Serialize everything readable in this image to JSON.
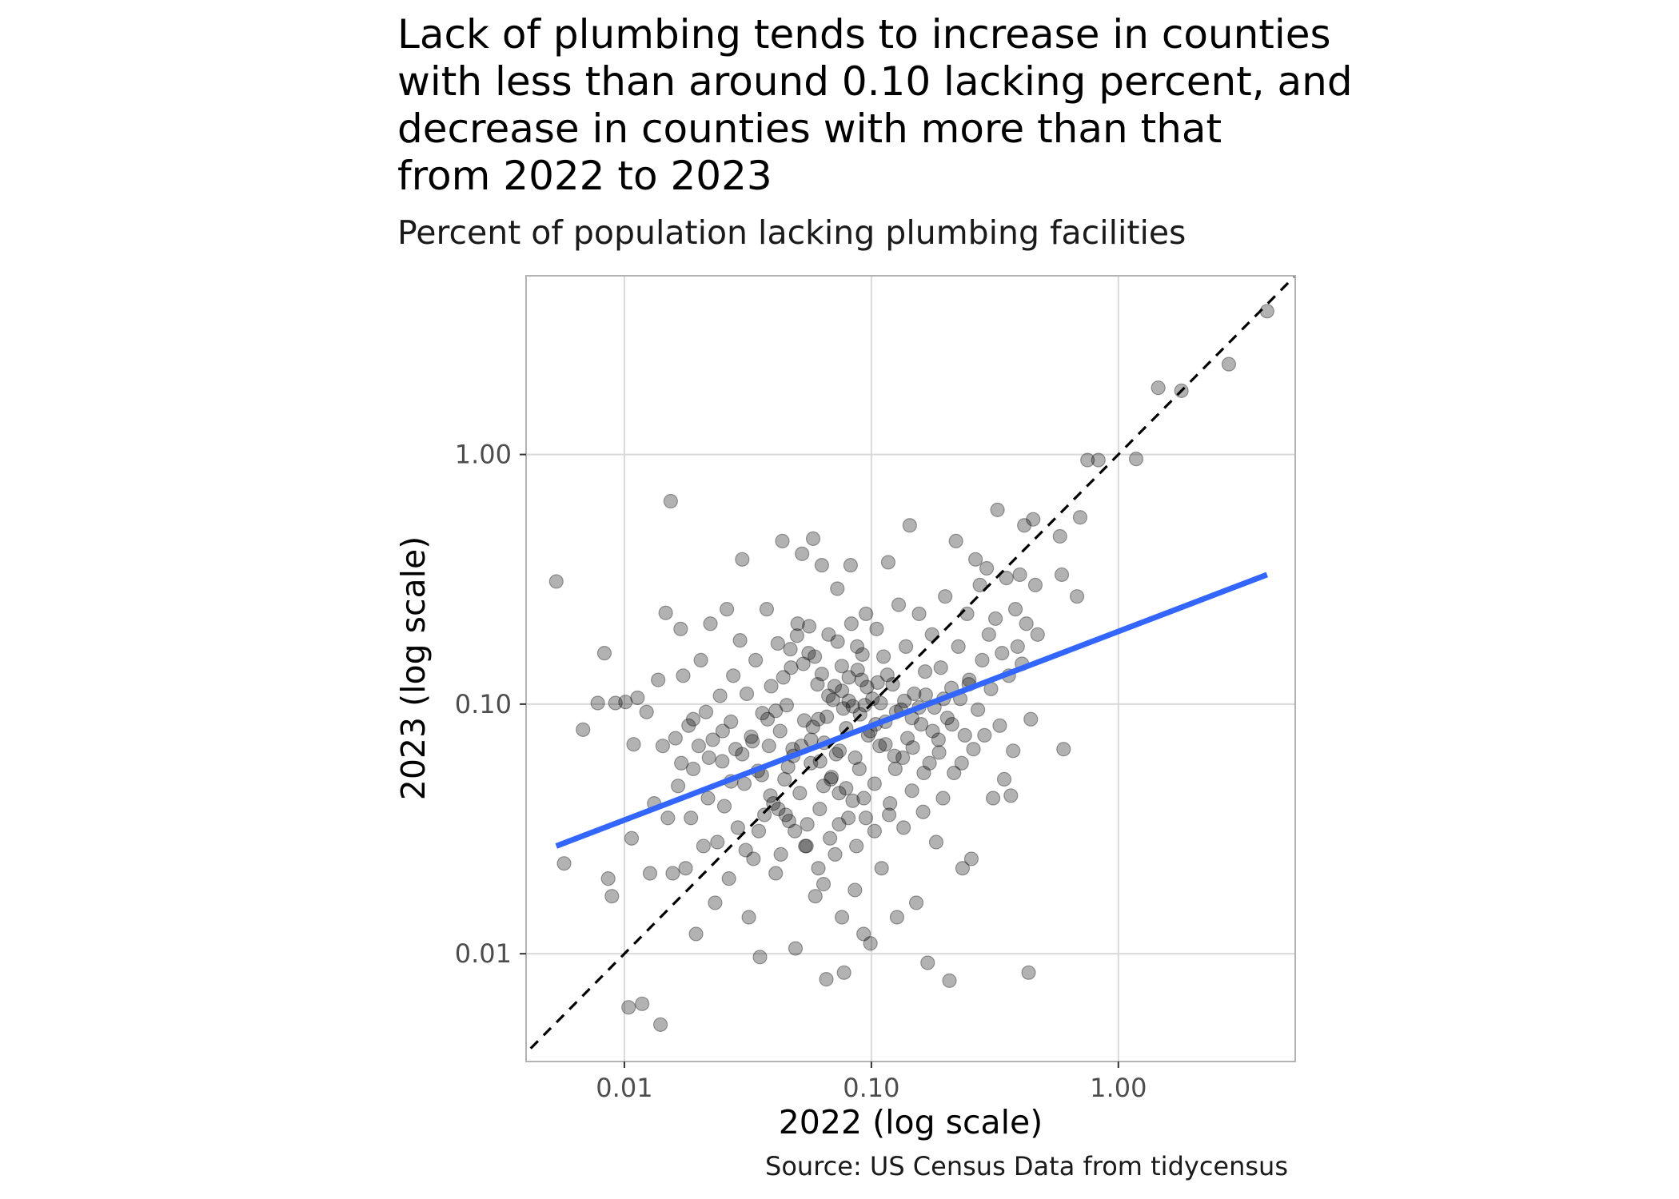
{
  "title": "Lack of plumbing tends to increase in counties\nwith less than around 0.10 lacking percent, and\ndecrease in counties with more than that\nfrom 2022 to 2023",
  "subtitle": "Percent of population lacking plumbing facilities",
  "caption": "Source: US Census Data from tidycensus",
  "colors": {
    "points": "#000000",
    "fit_line": "#3366FF",
    "reference_line": "#000000",
    "grid": "#d9d9d9",
    "panel_border": "#b3b3b3"
  },
  "chart_data": {
    "type": "scatter",
    "xlabel": "2022 (log scale)",
    "ylabel": "2023 (log scale)",
    "x_scale": "log10",
    "y_scale": "log10",
    "xlim": [
      0.004,
      5.2
    ],
    "ylim": [
      0.0037,
      5.2
    ],
    "x_ticks": [
      {
        "value": 0.01,
        "label": "0.01"
      },
      {
        "value": 0.1,
        "label": "0.10"
      },
      {
        "value": 1.0,
        "label": "1.00"
      }
    ],
    "y_ticks": [
      {
        "value": 0.01,
        "label": "0.01"
      },
      {
        "value": 0.1,
        "label": "0.10"
      },
      {
        "value": 1.0,
        "label": "1.00"
      }
    ],
    "grid": true,
    "legend": "none",
    "reference_line": {
      "type": "y = x",
      "style": "dashed"
    },
    "fit_line": {
      "type": "linear fit on log scale",
      "x": [
        0.0053,
        4.0
      ],
      "y": [
        0.027,
        0.33
      ]
    },
    "points": [
      {
        "x": 0.0053,
        "y": 0.31
      },
      {
        "x": 0.0057,
        "y": 0.023
      },
      {
        "x": 0.0068,
        "y": 0.079
      },
      {
        "x": 0.0078,
        "y": 0.101
      },
      {
        "x": 0.0083,
        "y": 0.16
      },
      {
        "x": 0.0086,
        "y": 0.02
      },
      {
        "x": 0.0089,
        "y": 0.017
      },
      {
        "x": 0.0092,
        "y": 0.101
      },
      {
        "x": 0.0101,
        "y": 0.102
      },
      {
        "x": 0.0104,
        "y": 0.0061
      },
      {
        "x": 0.0107,
        "y": 0.029
      },
      {
        "x": 0.0109,
        "y": 0.069
      },
      {
        "x": 0.0113,
        "y": 0.106
      },
      {
        "x": 0.0118,
        "y": 0.0063
      },
      {
        "x": 0.0123,
        "y": 0.093
      },
      {
        "x": 0.0127,
        "y": 0.021
      },
      {
        "x": 0.0132,
        "y": 0.04
      },
      {
        "x": 0.0137,
        "y": 0.125
      },
      {
        "x": 0.014,
        "y": 0.0052
      },
      {
        "x": 0.0143,
        "y": 0.068
      },
      {
        "x": 0.0147,
        "y": 0.232
      },
      {
        "x": 0.015,
        "y": 0.035
      },
      {
        "x": 0.0154,
        "y": 0.65
      },
      {
        "x": 0.0157,
        "y": 0.021
      },
      {
        "x": 0.0161,
        "y": 0.073
      },
      {
        "x": 0.0165,
        "y": 0.047
      },
      {
        "x": 0.0169,
        "y": 0.2
      },
      {
        "x": 0.0173,
        "y": 0.13
      },
      {
        "x": 0.0177,
        "y": 0.022
      },
      {
        "x": 0.0182,
        "y": 0.082
      },
      {
        "x": 0.0186,
        "y": 0.035
      },
      {
        "x": 0.019,
        "y": 0.055
      },
      {
        "x": 0.0195,
        "y": 0.012
      },
      {
        "x": 0.02,
        "y": 0.068
      },
      {
        "x": 0.0204,
        "y": 0.15
      },
      {
        "x": 0.0209,
        "y": 0.027
      },
      {
        "x": 0.0214,
        "y": 0.093
      },
      {
        "x": 0.0218,
        "y": 0.042
      },
      {
        "x": 0.0223,
        "y": 0.21
      },
      {
        "x": 0.0228,
        "y": 0.072
      },
      {
        "x": 0.0233,
        "y": 0.016
      },
      {
        "x": 0.0238,
        "y": 0.028
      },
      {
        "x": 0.0244,
        "y": 0.108
      },
      {
        "x": 0.0249,
        "y": 0.059
      },
      {
        "x": 0.0254,
        "y": 0.039
      },
      {
        "x": 0.026,
        "y": 0.24
      },
      {
        "x": 0.0265,
        "y": 0.02
      },
      {
        "x": 0.027,
        "y": 0.085
      },
      {
        "x": 0.0276,
        "y": 0.13
      },
      {
        "x": 0.0282,
        "y": 0.066
      },
      {
        "x": 0.0288,
        "y": 0.032
      },
      {
        "x": 0.0294,
        "y": 0.18
      },
      {
        "x": 0.03,
        "y": 0.38
      },
      {
        "x": 0.0306,
        "y": 0.048
      },
      {
        "x": 0.0313,
        "y": 0.11
      },
      {
        "x": 0.0319,
        "y": 0.014
      },
      {
        "x": 0.0326,
        "y": 0.074
      },
      {
        "x": 0.0333,
        "y": 0.024
      },
      {
        "x": 0.034,
        "y": 0.15
      },
      {
        "x": 0.0347,
        "y": 0.054
      },
      {
        "x": 0.0354,
        "y": 0.0097
      },
      {
        "x": 0.0362,
        "y": 0.092
      },
      {
        "x": 0.0369,
        "y": 0.036
      },
      {
        "x": 0.0377,
        "y": 0.24
      },
      {
        "x": 0.0385,
        "y": 0.068
      },
      {
        "x": 0.0393,
        "y": 0.118
      },
      {
        "x": 0.0401,
        "y": 0.04
      },
      {
        "x": 0.041,
        "y": 0.021
      },
      {
        "x": 0.0418,
        "y": 0.175
      },
      {
        "x": 0.0427,
        "y": 0.078
      },
      {
        "x": 0.0436,
        "y": 0.45
      },
      {
        "x": 0.0445,
        "y": 0.05
      },
      {
        "x": 0.0454,
        "y": 0.099
      },
      {
        "x": 0.0464,
        "y": 0.034
      },
      {
        "x": 0.0473,
        "y": 0.14
      },
      {
        "x": 0.0483,
        "y": 0.062
      },
      {
        "x": 0.0493,
        "y": 0.0105
      },
      {
        "x": 0.0503,
        "y": 0.21
      },
      {
        "x": 0.0513,
        "y": 0.044
      },
      {
        "x": 0.0524,
        "y": 0.4
      },
      {
        "x": 0.0535,
        "y": 0.086
      },
      {
        "x": 0.0546,
        "y": 0.027
      },
      {
        "x": 0.0557,
        "y": 0.16
      },
      {
        "x": 0.0569,
        "y": 0.058
      },
      {
        "x": 0.0581,
        "y": 0.46
      },
      {
        "x": 0.0593,
        "y": 0.017
      },
      {
        "x": 0.0605,
        "y": 0.12
      },
      {
        "x": 0.0618,
        "y": 0.038
      },
      {
        "x": 0.063,
        "y": 0.36
      },
      {
        "x": 0.0644,
        "y": 0.07
      },
      {
        "x": 0.0657,
        "y": 0.0079
      },
      {
        "x": 0.0671,
        "y": 0.19
      },
      {
        "x": 0.0685,
        "y": 0.05
      },
      {
        "x": 0.0699,
        "y": 0.104
      },
      {
        "x": 0.0713,
        "y": 0.025
      },
      {
        "x": 0.0728,
        "y": 0.29
      },
      {
        "x": 0.0743,
        "y": 0.065
      },
      {
        "x": 0.0759,
        "y": 0.142
      },
      {
        "x": 0.0775,
        "y": 0.0084
      },
      {
        "x": 0.0791,
        "y": 0.08
      },
      {
        "x": 0.0807,
        "y": 0.035
      },
      {
        "x": 0.0824,
        "y": 0.36
      },
      {
        "x": 0.0841,
        "y": 0.098
      },
      {
        "x": 0.0858,
        "y": 0.018
      },
      {
        "x": 0.0876,
        "y": 0.17
      },
      {
        "x": 0.0894,
        "y": 0.055
      },
      {
        "x": 0.0913,
        "y": 0.125
      },
      {
        "x": 0.0932,
        "y": 0.042
      },
      {
        "x": 0.0951,
        "y": 0.23
      },
      {
        "x": 0.0971,
        "y": 0.075
      },
      {
        "x": 0.0991,
        "y": 0.011
      },
      {
        "x": 0.101,
        "y": 0.105
      },
      {
        "x": 0.103,
        "y": 0.048
      },
      {
        "x": 0.105,
        "y": 0.2
      },
      {
        "x": 0.108,
        "y": 0.068
      },
      {
        "x": 0.11,
        "y": 0.022
      },
      {
        "x": 0.112,
        "y": 0.155
      },
      {
        "x": 0.114,
        "y": 0.085
      },
      {
        "x": 0.117,
        "y": 0.37
      },
      {
        "x": 0.119,
        "y": 0.04
      },
      {
        "x": 0.122,
        "y": 0.12
      },
      {
        "x": 0.124,
        "y": 0.062
      },
      {
        "x": 0.127,
        "y": 0.014
      },
      {
        "x": 0.129,
        "y": 0.25
      },
      {
        "x": 0.132,
        "y": 0.095
      },
      {
        "x": 0.135,
        "y": 0.032
      },
      {
        "x": 0.138,
        "y": 0.17
      },
      {
        "x": 0.14,
        "y": 0.073
      },
      {
        "x": 0.143,
        "y": 0.52
      },
      {
        "x": 0.146,
        "y": 0.045
      },
      {
        "x": 0.149,
        "y": 0.11
      },
      {
        "x": 0.152,
        "y": 0.016
      },
      {
        "x": 0.156,
        "y": 0.23
      },
      {
        "x": 0.159,
        "y": 0.083
      },
      {
        "x": 0.162,
        "y": 0.037
      },
      {
        "x": 0.165,
        "y": 0.135
      },
      {
        "x": 0.169,
        "y": 0.0092
      },
      {
        "x": 0.172,
        "y": 0.058
      },
      {
        "x": 0.176,
        "y": 0.19
      },
      {
        "x": 0.18,
        "y": 0.097
      },
      {
        "x": 0.183,
        "y": 0.028
      },
      {
        "x": 0.187,
        "y": 0.072
      },
      {
        "x": 0.191,
        "y": 0.14
      },
      {
        "x": 0.195,
        "y": 0.042
      },
      {
        "x": 0.199,
        "y": 0.27
      },
      {
        "x": 0.203,
        "y": 0.088
      },
      {
        "x": 0.207,
        "y": 0.0078
      },
      {
        "x": 0.211,
        "y": 0.116
      },
      {
        "x": 0.216,
        "y": 0.053
      },
      {
        "x": 0.22,
        "y": 0.45
      },
      {
        "x": 0.225,
        "y": 0.17
      },
      {
        "x": 0.229,
        "y": 0.105
      },
      {
        "x": 0.234,
        "y": 0.022
      },
      {
        "x": 0.239,
        "y": 0.075
      },
      {
        "x": 0.244,
        "y": 0.23
      },
      {
        "x": 0.249,
        "y": 0.125
      },
      {
        "x": 0.254,
        "y": 0.024
      },
      {
        "x": 0.259,
        "y": 0.066
      },
      {
        "x": 0.264,
        "y": 0.38
      },
      {
        "x": 0.27,
        "y": 0.095
      },
      {
        "x": 0.275,
        "y": 0.3
      },
      {
        "x": 0.281,
        "y": 0.15
      },
      {
        "x": 0.287,
        "y": 0.075
      },
      {
        "x": 0.293,
        "y": 0.35
      },
      {
        "x": 0.299,
        "y": 0.19
      },
      {
        "x": 0.305,
        "y": 0.115
      },
      {
        "x": 0.311,
        "y": 0.042
      },
      {
        "x": 0.318,
        "y": 0.22
      },
      {
        "x": 0.324,
        "y": 0.6
      },
      {
        "x": 0.331,
        "y": 0.082
      },
      {
        "x": 0.338,
        "y": 0.16
      },
      {
        "x": 0.345,
        "y": 0.05
      },
      {
        "x": 0.352,
        "y": 0.32
      },
      {
        "x": 0.36,
        "y": 0.13
      },
      {
        "x": 0.367,
        "y": 0.043
      },
      {
        "x": 0.375,
        "y": 0.065
      },
      {
        "x": 0.383,
        "y": 0.24
      },
      {
        "x": 0.391,
        "y": 0.17
      },
      {
        "x": 0.399,
        "y": 0.33
      },
      {
        "x": 0.407,
        "y": 0.145
      },
      {
        "x": 0.416,
        "y": 0.52
      },
      {
        "x": 0.424,
        "y": 0.21
      },
      {
        "x": 0.433,
        "y": 0.0084
      },
      {
        "x": 0.442,
        "y": 0.087
      },
      {
        "x": 0.452,
        "y": 0.55
      },
      {
        "x": 0.461,
        "y": 0.3
      },
      {
        "x": 0.471,
        "y": 0.19
      },
      {
        "x": 0.58,
        "y": 0.47
      },
      {
        "x": 0.59,
        "y": 0.33
      },
      {
        "x": 0.6,
        "y": 0.066
      },
      {
        "x": 0.68,
        "y": 0.27
      },
      {
        "x": 0.7,
        "y": 0.56
      },
      {
        "x": 0.75,
        "y": 0.95
      },
      {
        "x": 0.83,
        "y": 0.95
      },
      {
        "x": 1.18,
        "y": 0.96
      },
      {
        "x": 1.45,
        "y": 1.85
      },
      {
        "x": 1.8,
        "y": 1.8
      },
      {
        "x": 2.8,
        "y": 2.3
      },
      {
        "x": 4.0,
        "y": 3.75
      },
      {
        "x": 0.048,
        "y": 0.066
      },
      {
        "x": 0.052,
        "y": 0.068
      },
      {
        "x": 0.057,
        "y": 0.072
      },
      {
        "x": 0.062,
        "y": 0.059
      },
      {
        "x": 0.067,
        "y": 0.108
      },
      {
        "x": 0.072,
        "y": 0.063
      },
      {
        "x": 0.077,
        "y": 0.096
      },
      {
        "x": 0.081,
        "y": 0.103
      },
      {
        "x": 0.086,
        "y": 0.061
      },
      {
        "x": 0.09,
        "y": 0.091
      },
      {
        "x": 0.094,
        "y": 0.099
      },
      {
        "x": 0.099,
        "y": 0.078
      },
      {
        "x": 0.104,
        "y": 0.083
      },
      {
        "x": 0.109,
        "y": 0.101
      },
      {
        "x": 0.114,
        "y": 0.069
      },
      {
        "x": 0.064,
        "y": 0.047
      },
      {
        "x": 0.069,
        "y": 0.051
      },
      {
        "x": 0.074,
        "y": 0.044
      },
      {
        "x": 0.079,
        "y": 0.046
      },
      {
        "x": 0.084,
        "y": 0.041
      },
      {
        "x": 0.039,
        "y": 0.043
      },
      {
        "x": 0.042,
        "y": 0.038
      },
      {
        "x": 0.045,
        "y": 0.036
      },
      {
        "x": 0.046,
        "y": 0.056
      },
      {
        "x": 0.055,
        "y": 0.033
      },
      {
        "x": 0.058,
        "y": 0.081
      },
      {
        "x": 0.061,
        "y": 0.087
      },
      {
        "x": 0.066,
        "y": 0.089
      },
      {
        "x": 0.071,
        "y": 0.118
      },
      {
        "x": 0.076,
        "y": 0.113
      },
      {
        "x": 0.081,
        "y": 0.128
      },
      {
        "x": 0.088,
        "y": 0.137
      },
      {
        "x": 0.096,
        "y": 0.117
      },
      {
        "x": 0.106,
        "y": 0.122
      },
      {
        "x": 0.116,
        "y": 0.131
      },
      {
        "x": 0.126,
        "y": 0.093
      },
      {
        "x": 0.136,
        "y": 0.103
      },
      {
        "x": 0.146,
        "y": 0.088
      },
      {
        "x": 0.156,
        "y": 0.097
      },
      {
        "x": 0.166,
        "y": 0.109
      },
      {
        "x": 0.03,
        "y": 0.063
      },
      {
        "x": 0.033,
        "y": 0.071
      },
      {
        "x": 0.036,
        "y": 0.052
      },
      {
        "x": 0.038,
        "y": 0.087
      },
      {
        "x": 0.041,
        "y": 0.094
      },
      {
        "x": 0.025,
        "y": 0.078
      },
      {
        "x": 0.027,
        "y": 0.049
      },
      {
        "x": 0.022,
        "y": 0.061
      },
      {
        "x": 0.019,
        "y": 0.087
      },
      {
        "x": 0.017,
        "y": 0.058
      },
      {
        "x": 0.053,
        "y": 0.145
      },
      {
        "x": 0.059,
        "y": 0.155
      },
      {
        "x": 0.063,
        "y": 0.132
      },
      {
        "x": 0.044,
        "y": 0.128
      },
      {
        "x": 0.047,
        "y": 0.166
      },
      {
        "x": 0.05,
        "y": 0.188
      },
      {
        "x": 0.056,
        "y": 0.205
      },
      {
        "x": 0.073,
        "y": 0.178
      },
      {
        "x": 0.083,
        "y": 0.21
      },
      {
        "x": 0.092,
        "y": 0.158
      },
      {
        "x": 0.043,
        "y": 0.025
      },
      {
        "x": 0.049,
        "y": 0.031
      },
      {
        "x": 0.054,
        "y": 0.027
      },
      {
        "x": 0.061,
        "y": 0.022
      },
      {
        "x": 0.068,
        "y": 0.029
      },
      {
        "x": 0.074,
        "y": 0.033
      },
      {
        "x": 0.087,
        "y": 0.027
      },
      {
        "x": 0.095,
        "y": 0.035
      },
      {
        "x": 0.103,
        "y": 0.031
      },
      {
        "x": 0.118,
        "y": 0.036
      },
      {
        "x": 0.064,
        "y": 0.019
      },
      {
        "x": 0.076,
        "y": 0.014
      },
      {
        "x": 0.093,
        "y": 0.012
      },
      {
        "x": 0.035,
        "y": 0.031
      },
      {
        "x": 0.031,
        "y": 0.026
      },
      {
        "x": 0.125,
        "y": 0.055
      },
      {
        "x": 0.134,
        "y": 0.061
      },
      {
        "x": 0.147,
        "y": 0.067
      },
      {
        "x": 0.163,
        "y": 0.053
      },
      {
        "x": 0.177,
        "y": 0.078
      },
      {
        "x": 0.188,
        "y": 0.064
      },
      {
        "x": 0.196,
        "y": 0.105
      },
      {
        "x": 0.212,
        "y": 0.083
      },
      {
        "x": 0.232,
        "y": 0.058
      },
      {
        "x": 0.248,
        "y": 0.12
      }
    ]
  }
}
